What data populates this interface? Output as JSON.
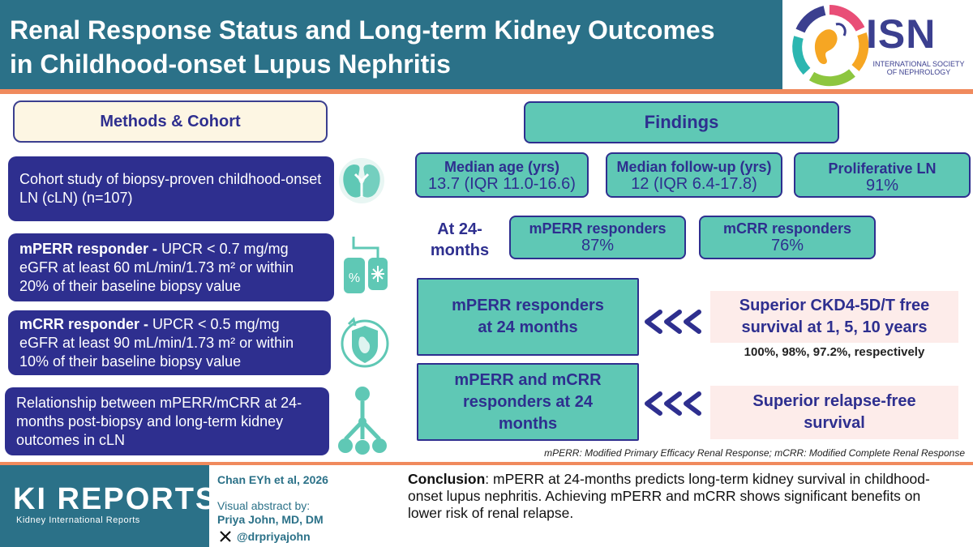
{
  "header": {
    "title_line1": "Renal Response Status and Long-term Kidney Outcomes",
    "title_line2": "in Childhood-onset Lupus Nephritis",
    "logo_text": "ISN",
    "logo_subtitle_line1": "INTERNATIONAL SOCIETY",
    "logo_subtitle_line2": "OF NEPHROLOGY"
  },
  "methods": {
    "heading": "Methods & Cohort",
    "items": [
      {
        "bold": "",
        "text": "Cohort study of biopsy-proven childhood-onset LN (cLN) (n=107)",
        "icon": "kidney-icon"
      },
      {
        "bold": "mPERR responder - ",
        "text": "UPCR < 0.7 mg/mg eGFR at least 60 mL/min/1.73 m² or within 20% of their baseline biopsy value",
        "icon": "iv-bag-icon"
      },
      {
        "bold": "mCRR responder - ",
        "text": "UPCR < 0.5 mg/mg eGFR at least 90 mL/min/1.73 m² or within 10% of their baseline biopsy value",
        "icon": "kidney-shield-icon"
      },
      {
        "bold": "",
        "text": "Relationship between mPERR/mCRR at 24-months post-biopsy and long-term kidney outcomes in cLN",
        "icon": "branch-tree-icon"
      }
    ]
  },
  "findings": {
    "heading": "Findings",
    "stats": [
      {
        "label": "Median age (yrs)",
        "value": "13.7 (IQR 11.0-16.6)"
      },
      {
        "label": "Median follow-up (yrs)",
        "value": "12 (IQR 6.4-17.8)"
      },
      {
        "label": "Proliferative LN",
        "value": "91%"
      }
    ],
    "at24_label": "At 24-months",
    "responders": [
      {
        "label": "mPERR responders",
        "value": "87%"
      },
      {
        "label": "mCRR responders",
        "value": "76%"
      }
    ],
    "results": [
      {
        "group": "mPERR responders at 24 months",
        "outcome": "Superior CKD4-5D/T free survival at 1, 5, 10 years",
        "note": "100%, 98%, 97.2%, respectively"
      },
      {
        "group": "mPERR and mCRR responders at 24 months",
        "outcome": "Superior relapse-free survival",
        "note": ""
      }
    ],
    "abbreviations": "mPERR: Modified Primary Efficacy Renal Response; mCRR: Modified Complete Renal Response"
  },
  "footer": {
    "journal": "KI REPORTS",
    "journal_sub": "Kidney International Reports",
    "citation": "Chan EYh et al, 2026",
    "visual_abstract_label": "Visual abstract by:",
    "author": "Priya John, MD, DM",
    "handle": "@drpriyajohn",
    "conclusion_label": "Conclusion",
    "conclusion_text": ": mPERR at 24-months predicts long-term kidney survival in childhood-onset lupus nephritis. Achieving mPERR and mCRR shows significant benefits on lower risk of renal relapse."
  },
  "colors": {
    "header_teal": "#2b7188",
    "accent_orange": "#f08a5d",
    "navy": "#2e2f8f",
    "mint": "#5fc8b5",
    "pink": "#fdecea"
  }
}
